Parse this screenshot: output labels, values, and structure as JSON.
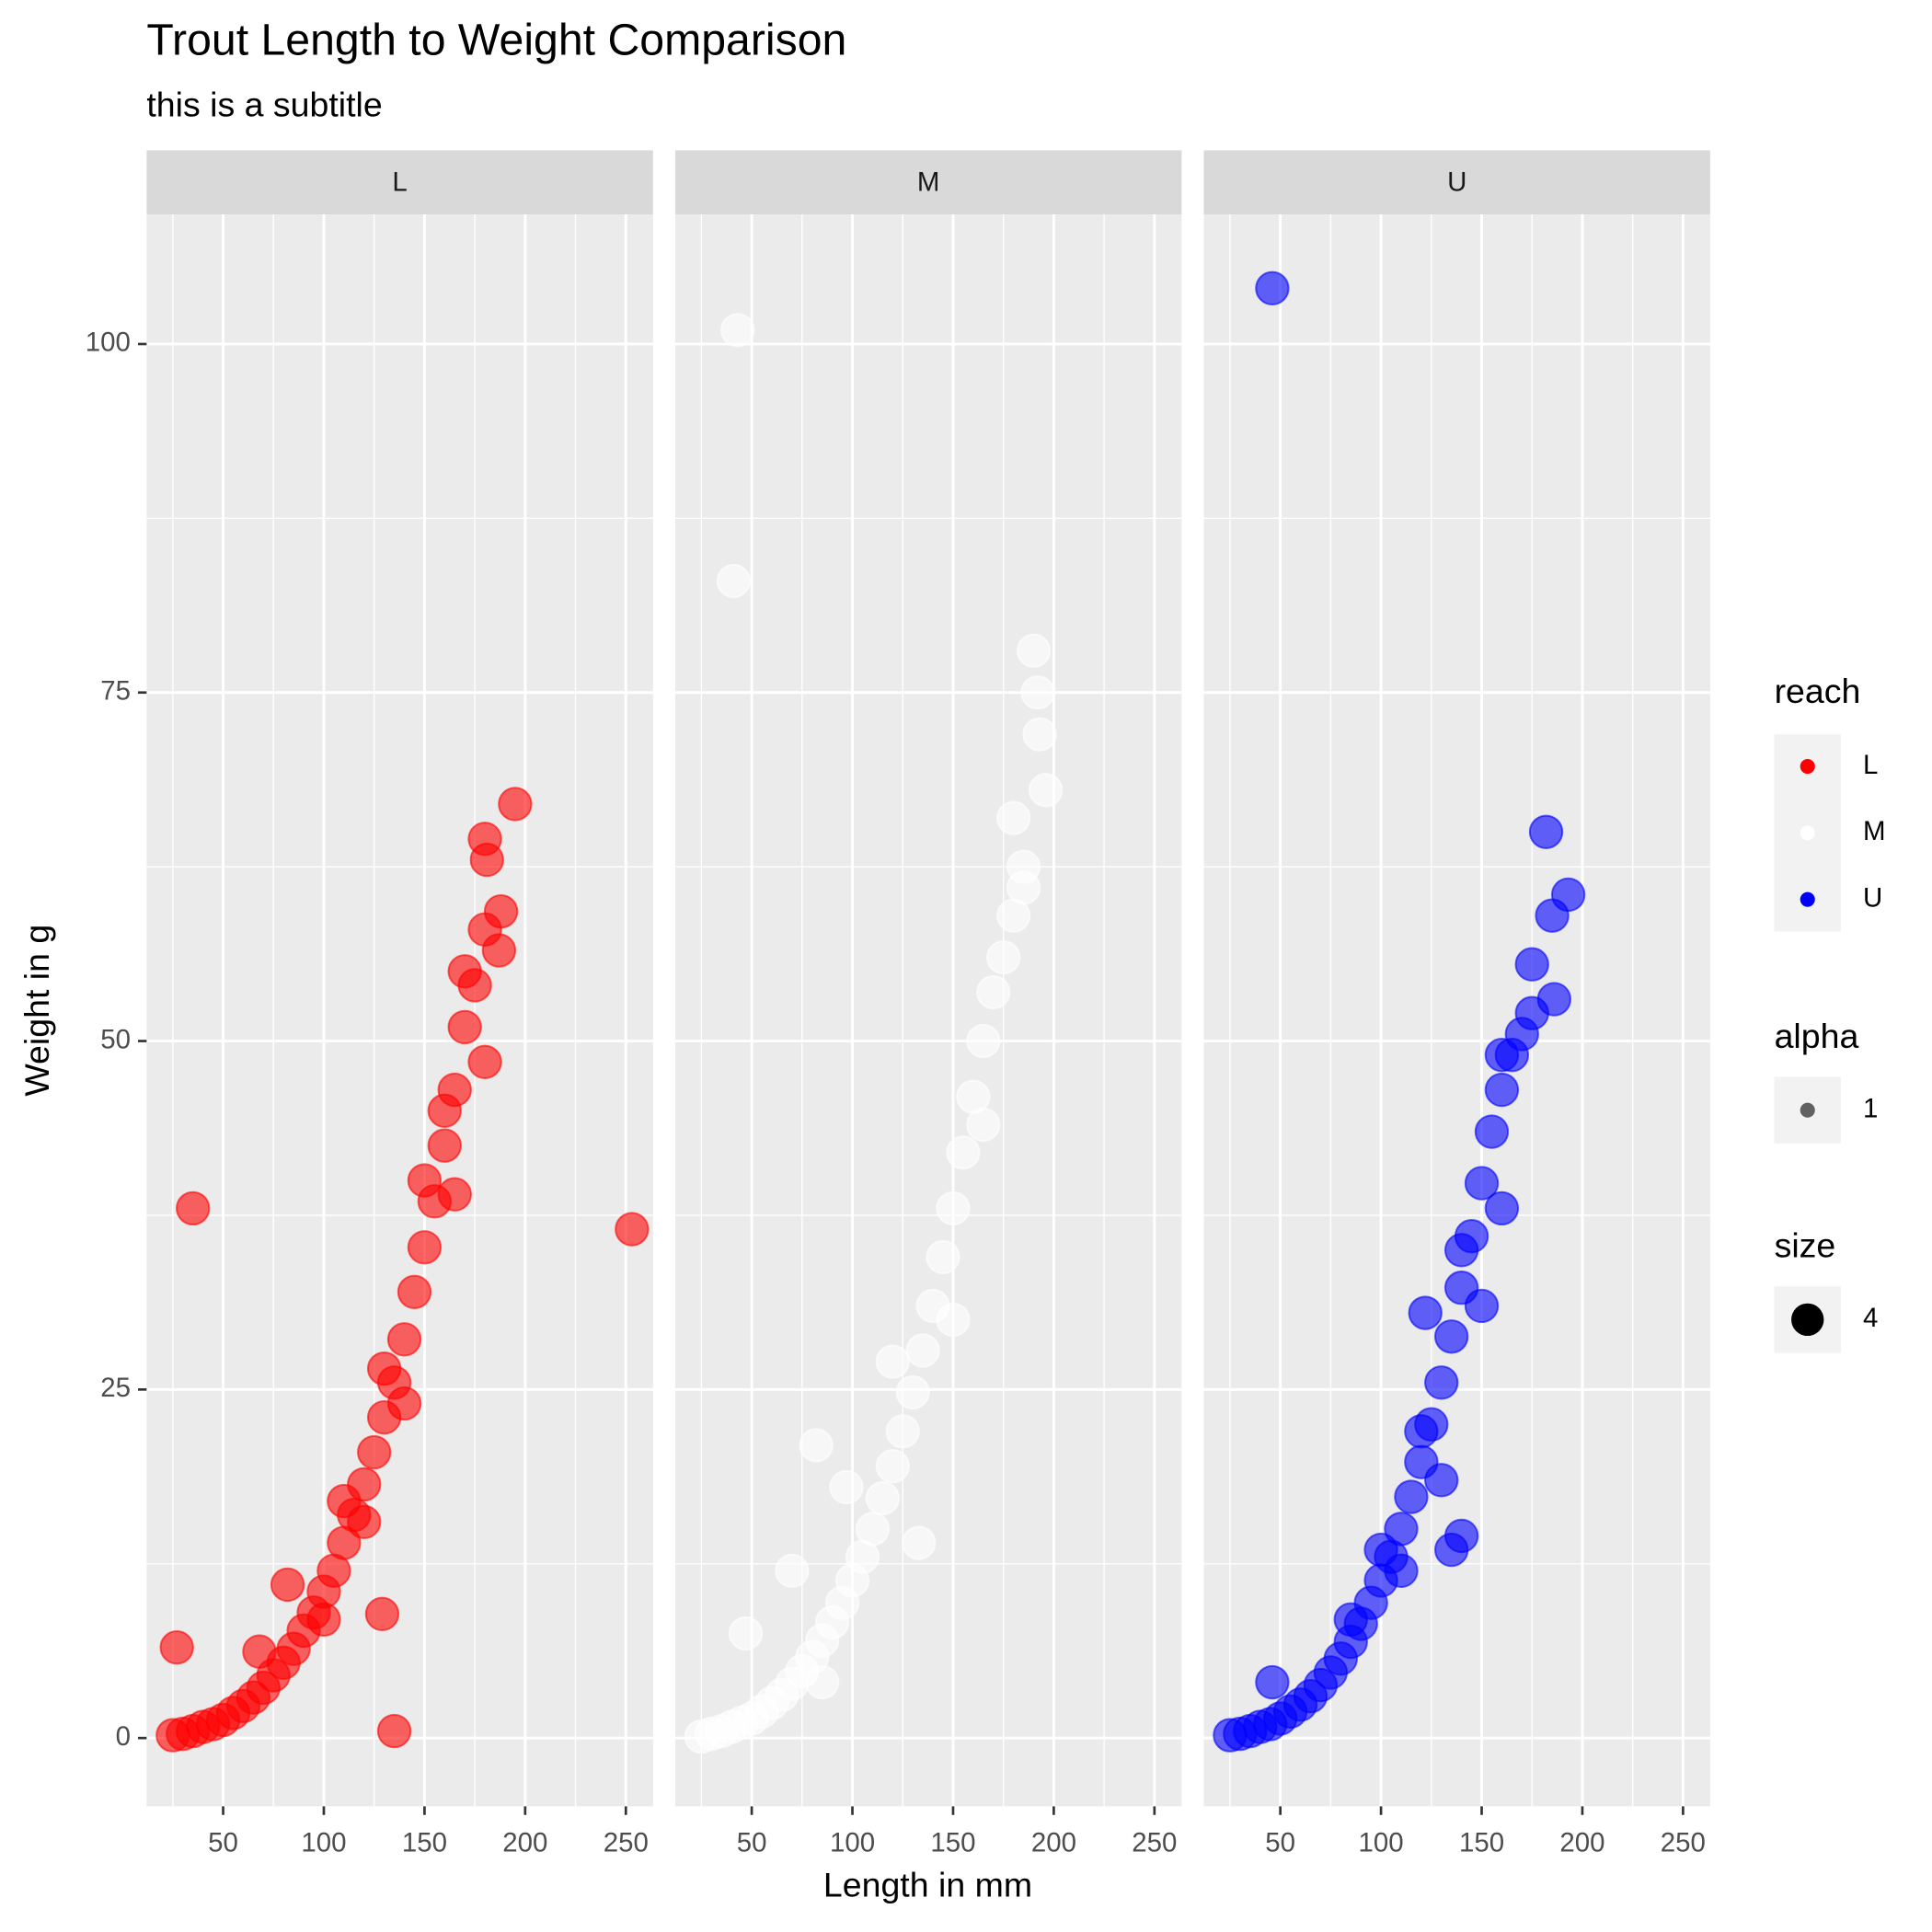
{
  "chart_data": {
    "type": "scatter",
    "title": "Trout Length to Weight Comparison",
    "subtitle": "this is a subtitle",
    "x_label": "Length in mm",
    "y_label": "Weight in g",
    "xlim": [
      12,
      263.5
    ],
    "ylim": [
      -4.9,
      109.3
    ],
    "xticks": [
      50,
      100,
      150,
      200,
      250
    ],
    "yticks": [
      0,
      25,
      50,
      75,
      100
    ],
    "x_minor_ticks": [
      25,
      75,
      125,
      175,
      225
    ],
    "y_minor_ticks": [
      12.5,
      37.5,
      62.5,
      87.5
    ],
    "grid": true,
    "legend": {
      "title": "reach",
      "position": "right"
    },
    "alpha": {
      "title": "alpha",
      "value": 1
    },
    "size": {
      "title": "size",
      "value": 4
    },
    "series": [
      {
        "name": "L",
        "color": "#ff0000",
        "x": [
          25,
          30,
          35,
          40,
          45,
          50,
          55,
          60,
          65,
          70,
          75,
          80,
          85,
          90,
          95,
          100,
          105,
          110,
          115,
          120,
          125,
          130,
          135,
          140,
          145,
          150,
          155,
          160,
          165,
          170,
          175,
          180,
          100,
          110,
          120,
          130,
          140,
          150,
          160,
          165,
          180,
          170,
          27,
          35,
          253,
          135,
          129,
          195,
          180,
          181,
          188,
          187,
          82,
          68
        ],
        "values": [
          0.2,
          0.3,
          0.5,
          0.8,
          1.0,
          1.3,
          1.8,
          2.3,
          2.9,
          3.6,
          4.5,
          5.4,
          6.4,
          7.7,
          9.0,
          10.5,
          12.0,
          14.0,
          16.0,
          18.2,
          20.5,
          23.0,
          25.5,
          28.6,
          32.0,
          35.2,
          38.5,
          42.5,
          46.5,
          51.0,
          54.0,
          58.0,
          8.5,
          17,
          15.5,
          26.5,
          24,
          40,
          45,
          39,
          48.5,
          55,
          6.5,
          38,
          36.5,
          0.5,
          8.9,
          67,
          64.5,
          63,
          59.3,
          56.5,
          11,
          6.2
        ]
      },
      {
        "name": "M",
        "color": "#ffffff",
        "x": [
          25,
          30,
          35,
          40,
          45,
          50,
          55,
          60,
          65,
          70,
          75,
          80,
          85,
          90,
          95,
          100,
          105,
          110,
          115,
          120,
          125,
          130,
          135,
          140,
          145,
          150,
          155,
          160,
          165,
          170,
          175,
          180,
          185,
          190,
          192,
          193,
          196,
          180,
          185,
          43,
          41,
          82,
          97,
          133,
          47,
          70,
          85,
          120,
          150,
          165
        ],
        "values": [
          0.1,
          0.3,
          0.5,
          0.8,
          1.1,
          1.4,
          1.9,
          2.5,
          3.1,
          3.9,
          4.8,
          5.8,
          7.0,
          8.3,
          9.7,
          11.3,
          13.0,
          15.0,
          17.2,
          19.5,
          22.0,
          24.8,
          27.8,
          31.0,
          34.5,
          38.0,
          42.0,
          46.0,
          50.0,
          53.5,
          56.0,
          59.0,
          62.5,
          78,
          75,
          72,
          68,
          66,
          61,
          101,
          83,
          21,
          18,
          14,
          7.5,
          12,
          4,
          27,
          30,
          44
        ]
      },
      {
        "name": "U",
        "color": "#0000ff",
        "x": [
          25,
          30,
          35,
          40,
          45,
          50,
          55,
          60,
          65,
          70,
          75,
          80,
          85,
          90,
          95,
          100,
          105,
          110,
          115,
          120,
          125,
          130,
          135,
          140,
          145,
          150,
          155,
          160,
          165,
          170,
          175,
          100,
          110,
          120,
          130,
          140,
          150,
          160,
          46,
          182,
          193,
          185,
          175,
          186,
          160,
          122,
          140,
          46,
          85,
          135
        ],
        "values": [
          0.2,
          0.3,
          0.5,
          0.8,
          1.0,
          1.4,
          1.9,
          2.4,
          3.0,
          3.8,
          4.7,
          5.7,
          6.9,
          8.2,
          9.7,
          11.3,
          13.0,
          15.0,
          17.3,
          19.8,
          22.5,
          25.5,
          28.8,
          32.3,
          36.0,
          39.8,
          43.5,
          46.5,
          49.0,
          50.5,
          52.0,
          13.5,
          12,
          22,
          18.5,
          35,
          31,
          38,
          104,
          65,
          60.5,
          59,
          55.5,
          53,
          49,
          30.5,
          14.5,
          4,
          8.5,
          13.5
        ]
      }
    ]
  }
}
